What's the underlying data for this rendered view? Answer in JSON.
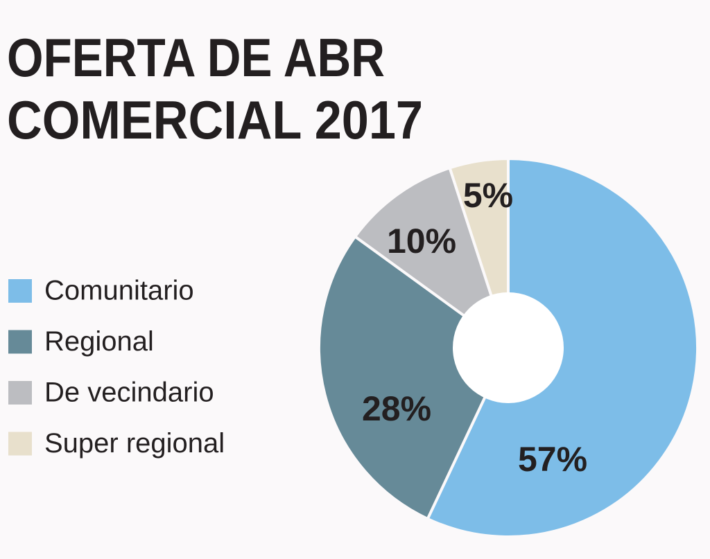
{
  "chart_data": {
    "type": "donut",
    "title": [
      "OFERTA DE ABR",
      "COMERCIAL 2017"
    ],
    "categories": [
      "Comunitario",
      "Regional",
      "De vecindario",
      "Super regional"
    ],
    "values": [
      57,
      28,
      10,
      5
    ],
    "value_labels": [
      "57%",
      "28%",
      "10%",
      "5%"
    ],
    "colors": [
      "#7dbde8",
      "#668a98",
      "#bcbdc1",
      "#e8e0cc"
    ]
  }
}
